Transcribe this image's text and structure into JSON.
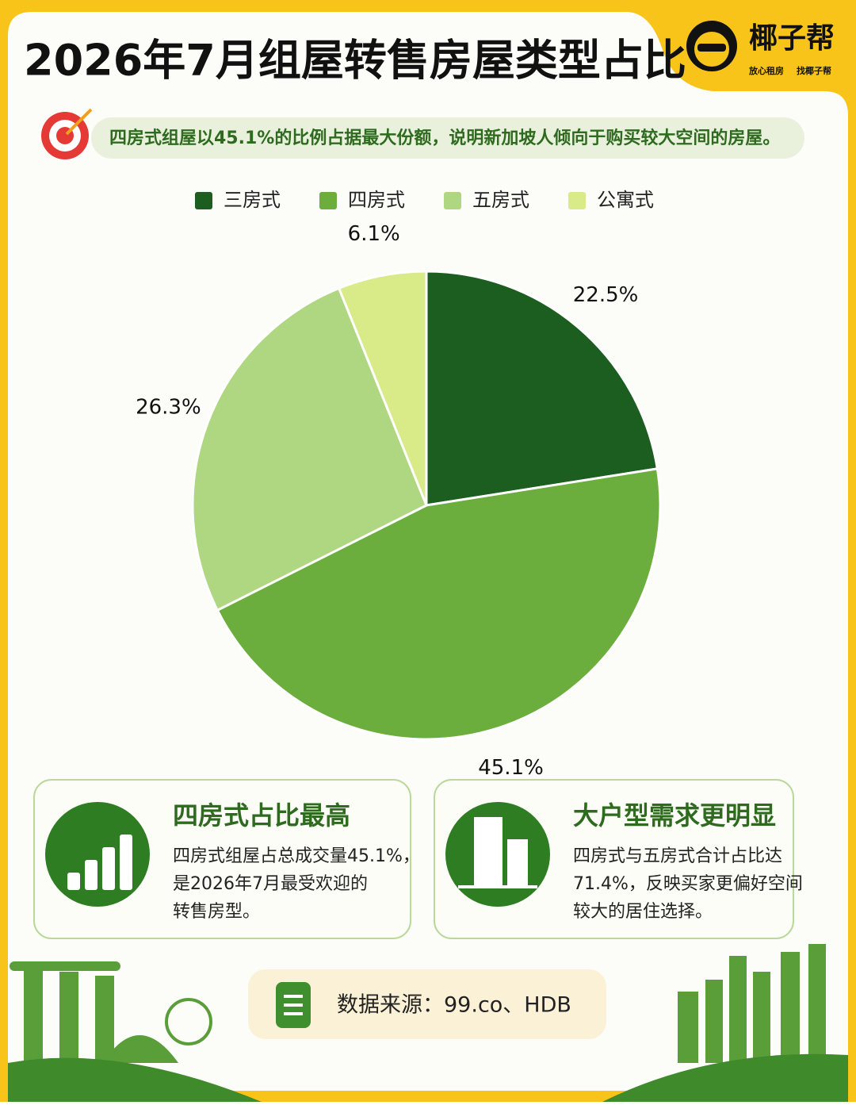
{
  "header": {
    "title": "2026年7月组屋转售房屋类型占比",
    "brand": "椰子帮",
    "slogan": [
      "放心租房",
      "找椰子帮"
    ]
  },
  "insight": "四房式组屋以45.1%的比例占据最大份额，说明新加坡人倾向于购买较大空间的房屋。",
  "chart_data": {
    "type": "pie",
    "categories": [
      "三房式",
      "四房式",
      "五房式",
      "公寓式"
    ],
    "values": [
      22.5,
      45.1,
      26.3,
      6.1
    ],
    "value_labels": [
      "22.5%",
      "45.1%",
      "26.3%",
      "6.1%"
    ],
    "colors": [
      "#1b5e20",
      "#6cae3e",
      "#afd781",
      "#d9ea88"
    ],
    "legend": "top"
  },
  "cards": [
    {
      "title": "四房式占比最高",
      "lines": [
        "四房式组屋占总成交量45.1%，",
        "是2026年7月最受欢迎的",
        "转售房型。"
      ]
    },
    {
      "title": "大户型需求更明显",
      "lines": [
        "四房式与五房式合计占比达",
        "71.4%，反映买家更偏好空间",
        "较大的居住选择。"
      ]
    }
  ],
  "source": "数据来源：99.co、HDB"
}
